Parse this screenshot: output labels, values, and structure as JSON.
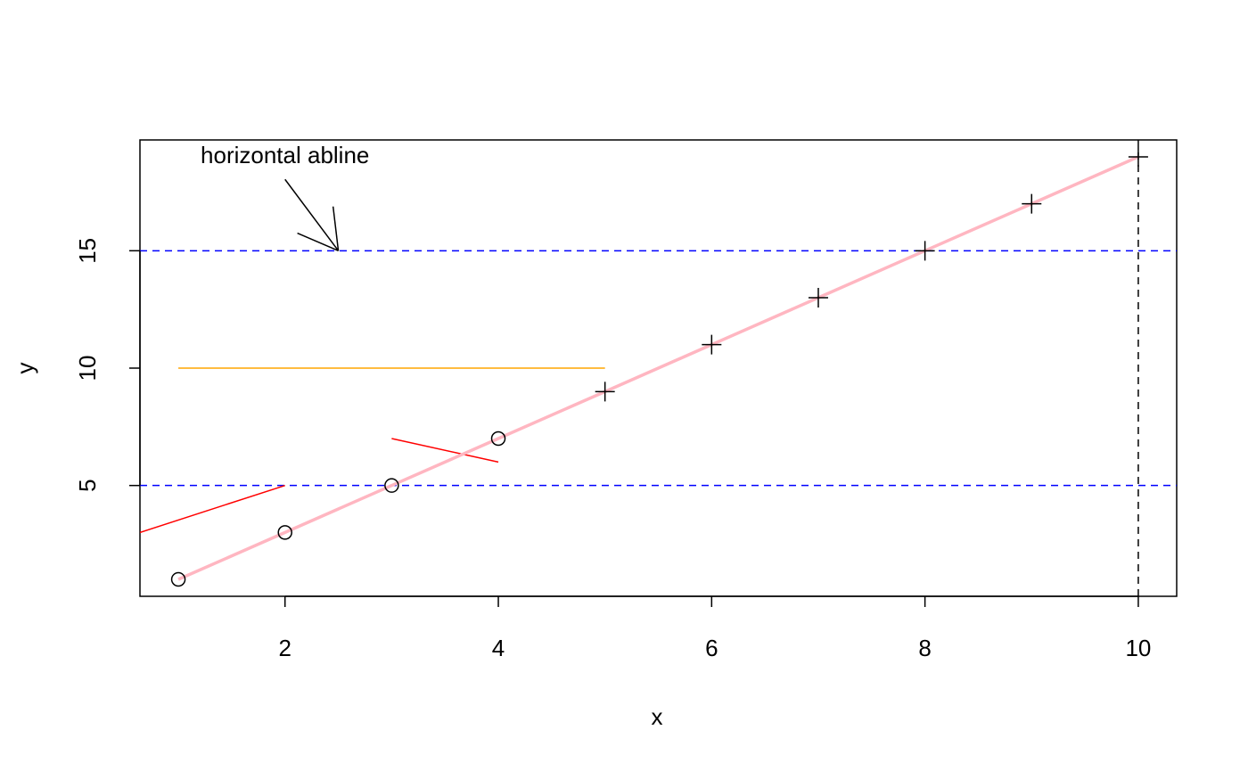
{
  "chart_data": {
    "type": "scatter",
    "x": [
      1,
      2,
      3,
      4,
      5,
      6,
      7,
      8,
      9,
      10
    ],
    "values": [
      1,
      3,
      5,
      7,
      9,
      11,
      13,
      15,
      17,
      19
    ],
    "point_shapes": [
      "circle",
      "circle",
      "circle",
      "circle",
      "plus",
      "plus",
      "plus",
      "plus",
      "plus",
      "plus"
    ],
    "point_color": "#000000",
    "line_color": "#ffb6c1",
    "xlim": [
      0.64,
      10.36
    ],
    "ylim": [
      0.28,
      19.72
    ],
    "xticks": [
      2,
      4,
      6,
      8,
      10
    ],
    "yticks": [
      5,
      10,
      15
    ],
    "x_label": "x",
    "y_label": "y",
    "hlines": [
      {
        "value": 5,
        "color": "#0000ff"
      },
      {
        "value": 15,
        "color": "#0000ff"
      }
    ],
    "vlines": [
      {
        "value": 10,
        "color": "#000000"
      }
    ],
    "segments": [
      {
        "x": [
          1,
          5
        ],
        "y": [
          10,
          10
        ],
        "color": "#ffa500"
      },
      {
        "x": [
          0.64,
          2
        ],
        "y": [
          3,
          5
        ],
        "color": "#ff0000"
      },
      {
        "x": [
          3,
          4
        ],
        "y": [
          7,
          6
        ],
        "color": "#ff0000"
      }
    ],
    "annotation": {
      "text": "horizontal abline",
      "x": 2,
      "y": 19,
      "arrow_from": [
        2,
        18.04
      ],
      "arrow_to": [
        2.5,
        15
      ]
    }
  }
}
